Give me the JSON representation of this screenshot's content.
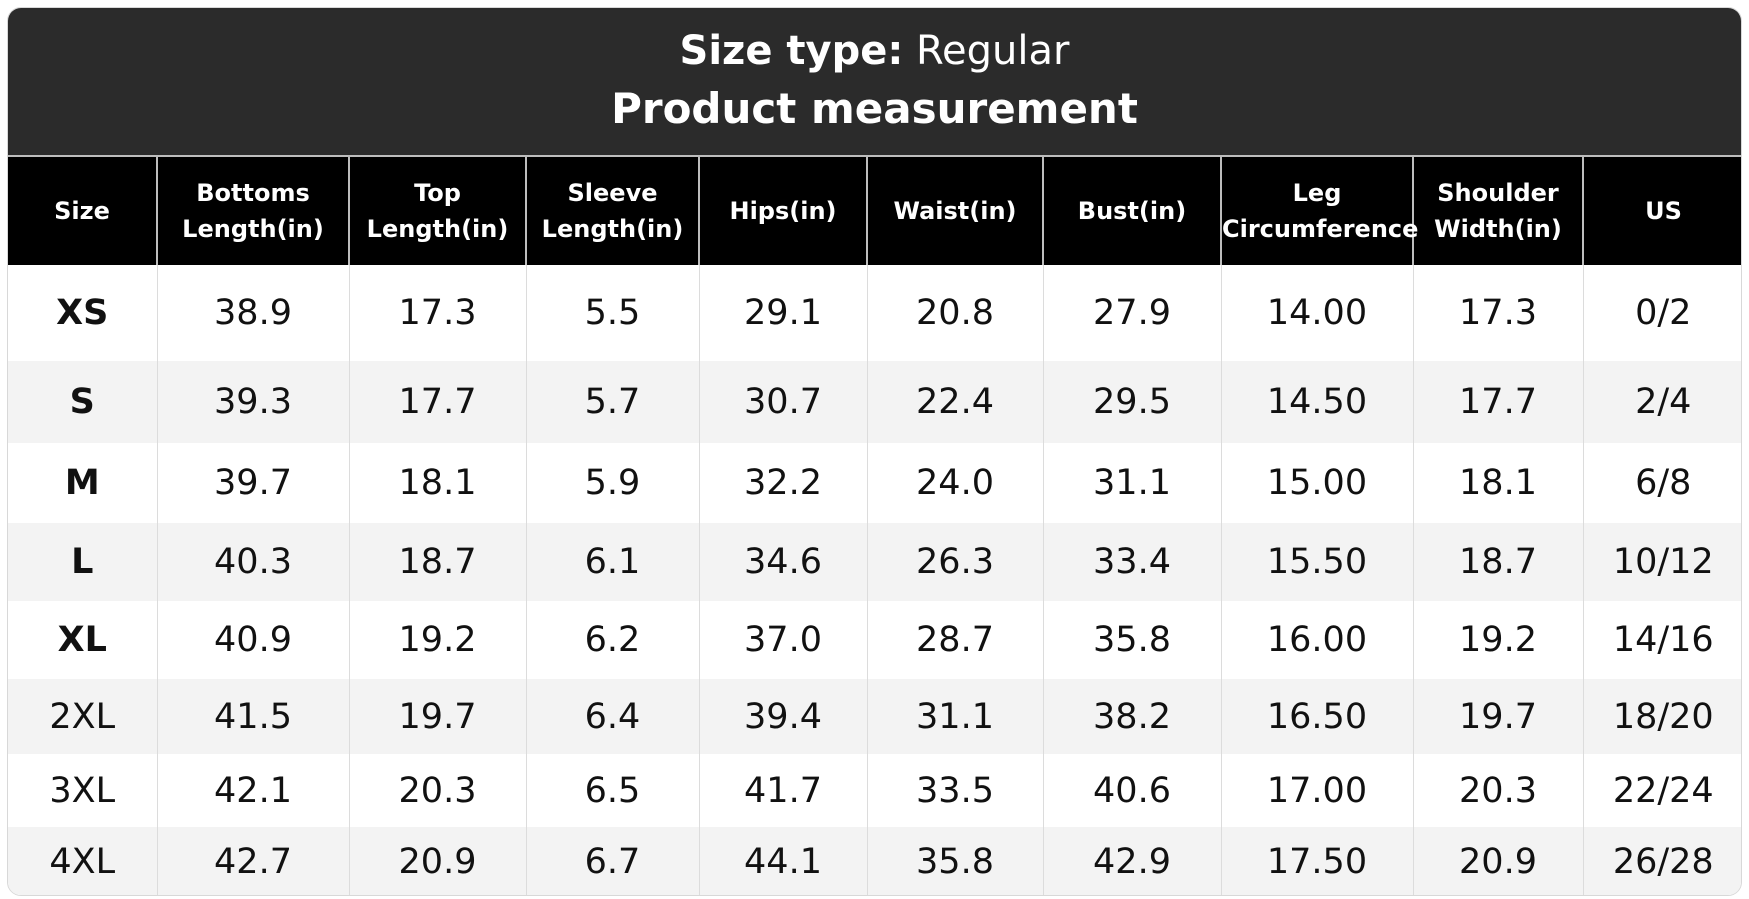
{
  "header": {
    "title_label": "Size type:",
    "title_value": "Regular",
    "subtitle": "Product measurement"
  },
  "table": {
    "columns": [
      [
        "Size"
      ],
      [
        "Bottoms",
        "Length(in)"
      ],
      [
        "Top",
        "Length(in)"
      ],
      [
        "Sleeve",
        "Length(in)"
      ],
      [
        "Hips(in)"
      ],
      [
        "Waist(in)"
      ],
      [
        "Bust(in)"
      ],
      [
        "Leg",
        "Circumference"
      ],
      [
        "Shoulder",
        "Width(in)"
      ],
      [
        "US"
      ]
    ],
    "rows": [
      [
        "XS",
        "38.9",
        "17.3",
        "5.5",
        "29.1",
        "20.8",
        "27.9",
        "14.00",
        "17.3",
        "0/2"
      ],
      [
        "S",
        "39.3",
        "17.7",
        "5.7",
        "30.7",
        "22.4",
        "29.5",
        "14.50",
        "17.7",
        "2/4"
      ],
      [
        "M",
        "39.7",
        "18.1",
        "5.9",
        "32.2",
        "24.0",
        "31.1",
        "15.00",
        "18.1",
        "6/8"
      ],
      [
        "L",
        "40.3",
        "18.7",
        "6.1",
        "34.6",
        "26.3",
        "33.4",
        "15.50",
        "18.7",
        "10/12"
      ],
      [
        "XL",
        "40.9",
        "19.2",
        "6.2",
        "37.0",
        "28.7",
        "35.8",
        "16.00",
        "19.2",
        "14/16"
      ],
      [
        "2XL",
        "41.5",
        "19.7",
        "6.4",
        "39.4",
        "31.1",
        "38.2",
        "16.50",
        "19.7",
        "18/20"
      ],
      [
        "3XL",
        "42.1",
        "20.3",
        "6.5",
        "41.7",
        "33.5",
        "40.6",
        "17.00",
        "20.3",
        "22/24"
      ],
      [
        "4XL",
        "42.7",
        "20.9",
        "6.7",
        "44.1",
        "35.8",
        "42.9",
        "17.50",
        "20.9",
        "26/28"
      ]
    ]
  }
}
